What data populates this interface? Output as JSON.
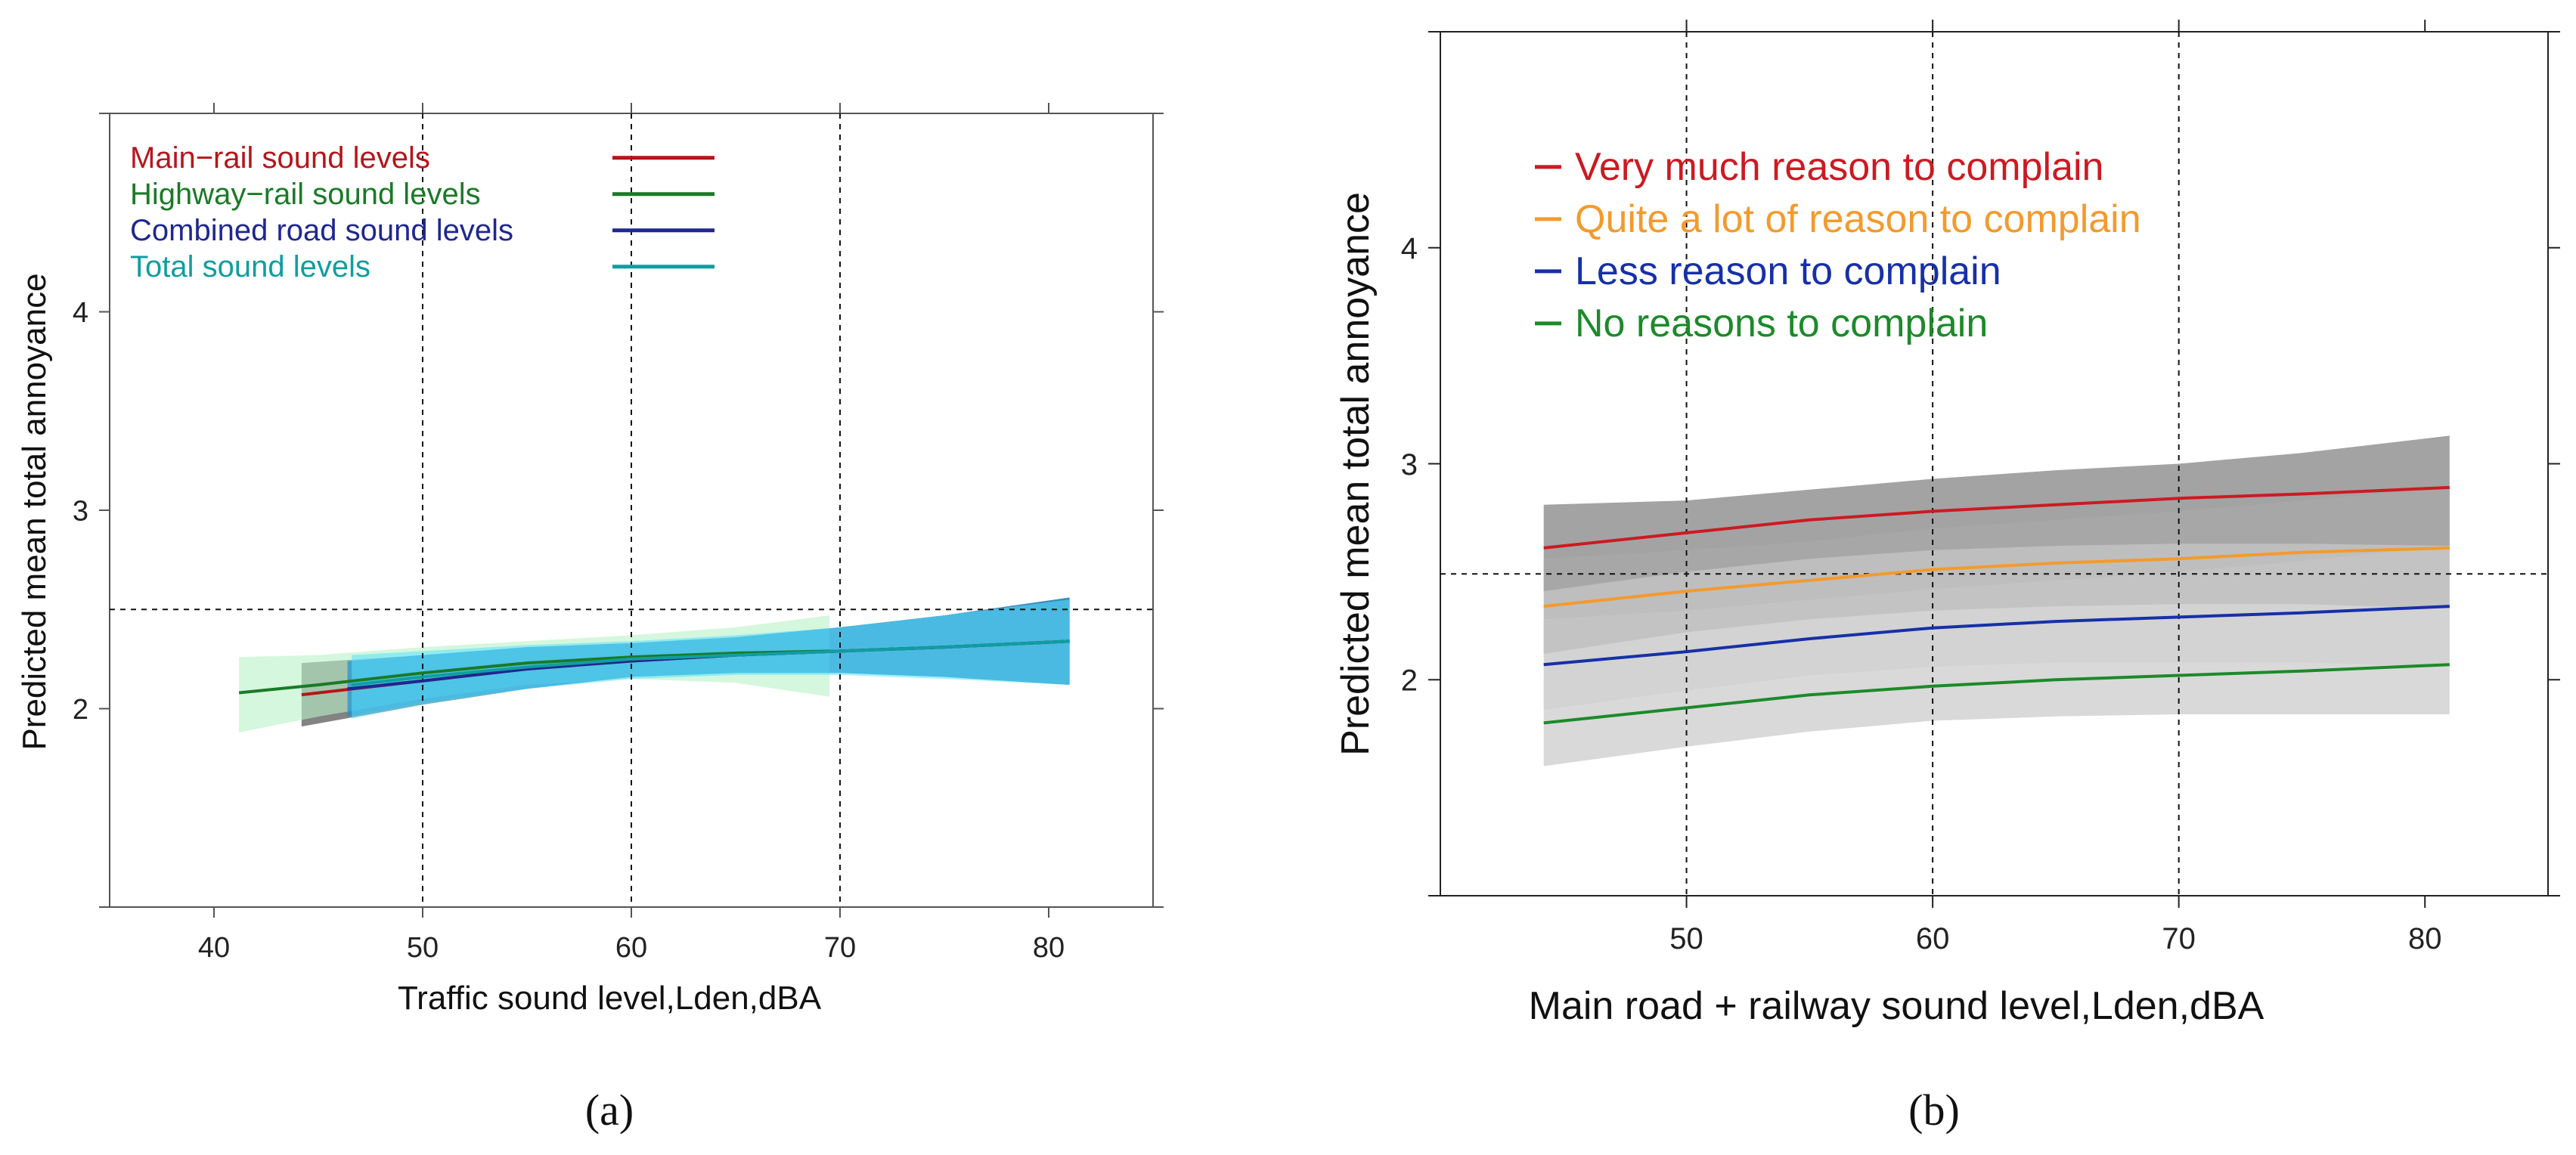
{
  "panels": {
    "a": {
      "caption": "(a)"
    },
    "b": {
      "caption": "(b)"
    }
  },
  "chart_data": [
    {
      "id": "a",
      "type": "line",
      "title": "",
      "xlabel": "Traffic sound level,Lden,dBA",
      "ylabel": "Predicted mean total annoyance",
      "xlim": [
        35,
        85
      ],
      "ylim": [
        1,
        5
      ],
      "xticks": [
        40,
        50,
        60,
        70,
        80
      ],
      "yticks": [
        2,
        3,
        4
      ],
      "vlines": [
        50,
        60,
        70
      ],
      "hline": 2.5,
      "legend_position": "top-left",
      "series": [
        {
          "name": "Main−rail sound levels",
          "color": "#b5161b",
          "band_color": "#5a5a5a",
          "band_opacity": 0.75,
          "x": [
            44.2,
            50,
            55,
            60,
            65,
            70,
            75,
            81
          ],
          "y": [
            2.07,
            2.14,
            2.2,
            2.24,
            2.27,
            2.29,
            2.31,
            2.34
          ],
          "lower": [
            1.91,
            2.02,
            2.1,
            2.16,
            2.18,
            2.18,
            2.16,
            2.12
          ],
          "upper": [
            2.23,
            2.27,
            2.31,
            2.33,
            2.36,
            2.41,
            2.47,
            2.56
          ]
        },
        {
          "name": "Highway−rail sound levels",
          "color": "#1a7a26",
          "band_color": "#b9f2c6",
          "band_opacity": 0.6,
          "x": [
            41.2,
            45,
            50,
            55,
            60,
            65,
            69.5
          ],
          "y": [
            2.08,
            2.12,
            2.18,
            2.23,
            2.26,
            2.28,
            2.29
          ],
          "lower": [
            1.88,
            1.96,
            2.05,
            2.12,
            2.15,
            2.13,
            2.06
          ],
          "upper": [
            2.26,
            2.27,
            2.31,
            2.34,
            2.37,
            2.41,
            2.47
          ]
        },
        {
          "name": "Combined road sound levels",
          "color": "#1f2790",
          "band_color": "#1b8fd9",
          "band_opacity": 0.7,
          "x": [
            46.4,
            50,
            55,
            60,
            65,
            70,
            75,
            81
          ],
          "y": [
            2.1,
            2.14,
            2.2,
            2.24,
            2.27,
            2.29,
            2.31,
            2.34
          ],
          "lower": [
            1.96,
            2.03,
            2.1,
            2.16,
            2.18,
            2.18,
            2.16,
            2.12
          ],
          "upper": [
            2.24,
            2.27,
            2.31,
            2.33,
            2.36,
            2.41,
            2.47,
            2.56
          ]
        },
        {
          "name": "Total sound levels",
          "color": "#0f9ea0",
          "band_color": "#57e1ff",
          "band_opacity": 0.55,
          "x": [
            46.6,
            50,
            55,
            60,
            65,
            70,
            75,
            81
          ],
          "y": [
            2.12,
            2.16,
            2.21,
            2.25,
            2.27,
            2.29,
            2.31,
            2.34
          ],
          "lower": [
            1.95,
            2.02,
            2.1,
            2.15,
            2.17,
            2.17,
            2.15,
            2.12
          ],
          "upper": [
            2.27,
            2.29,
            2.32,
            2.34,
            2.37,
            2.41,
            2.47,
            2.55
          ]
        }
      ]
    },
    {
      "id": "b",
      "type": "line",
      "title": "",
      "xlabel": "Main road + railway sound level,Lden,dBA",
      "ylabel": "Predicted mean total annoyance",
      "xlim": [
        40,
        85
      ],
      "ylim": [
        1,
        5
      ],
      "xticks": [
        50,
        60,
        70,
        80
      ],
      "yticks": [
        2,
        3,
        4
      ],
      "vlines": [
        50,
        60,
        70
      ],
      "hline": 2.49,
      "legend_position": "top-left",
      "series": [
        {
          "name": "Very much reason to complain",
          "color": "#cc1a22",
          "band_color": "#8c8c8c",
          "band_opacity": 0.8,
          "x": [
            44.2,
            50,
            55,
            60,
            65,
            70,
            75,
            81
          ],
          "y": [
            2.61,
            2.68,
            2.74,
            2.78,
            2.81,
            2.84,
            2.86,
            2.89
          ],
          "lower": [
            2.41,
            2.5,
            2.56,
            2.6,
            2.62,
            2.63,
            2.63,
            2.62
          ],
          "upper": [
            2.81,
            2.83,
            2.88,
            2.93,
            2.97,
            3.0,
            3.05,
            3.13
          ]
        },
        {
          "name": "Quite a lot of reason to complain",
          "color": "#f39a2d",
          "band_color": "#a8a8a8",
          "band_opacity": 0.75,
          "x": [
            44.2,
            50,
            55,
            60,
            65,
            70,
            75,
            81
          ],
          "y": [
            2.34,
            2.41,
            2.46,
            2.51,
            2.54,
            2.56,
            2.59,
            2.61
          ],
          "lower": [
            2.12,
            2.22,
            2.28,
            2.32,
            2.34,
            2.35,
            2.35,
            2.33
          ],
          "upper": [
            2.56,
            2.6,
            2.64,
            2.7,
            2.74,
            2.78,
            2.83,
            2.89
          ]
        },
        {
          "name": "Less reason to complain",
          "color": "#1730a8",
          "band_color": "#c4c4c4",
          "band_opacity": 0.75,
          "x": [
            44.2,
            50,
            55,
            60,
            65,
            70,
            75,
            81
          ],
          "y": [
            2.07,
            2.13,
            2.19,
            2.24,
            2.27,
            2.29,
            2.31,
            2.34
          ],
          "lower": [
            1.86,
            1.95,
            2.02,
            2.06,
            2.08,
            2.08,
            2.08,
            2.06
          ],
          "upper": [
            2.28,
            2.32,
            2.37,
            2.42,
            2.46,
            2.5,
            2.55,
            2.62
          ]
        },
        {
          "name": "No reasons to complain",
          "color": "#1c8a2a",
          "band_color": "#d2d2d2",
          "band_opacity": 0.85,
          "x": [
            44.2,
            50,
            55,
            60,
            65,
            70,
            75,
            81
          ],
          "y": [
            1.8,
            1.87,
            1.93,
            1.97,
            2.0,
            2.02,
            2.04,
            2.07
          ],
          "lower": [
            1.6,
            1.69,
            1.76,
            1.81,
            1.83,
            1.84,
            1.84,
            1.84
          ],
          "upper": [
            2.0,
            2.04,
            2.08,
            2.14,
            2.19,
            2.23,
            2.28,
            2.33
          ]
        }
      ]
    }
  ]
}
